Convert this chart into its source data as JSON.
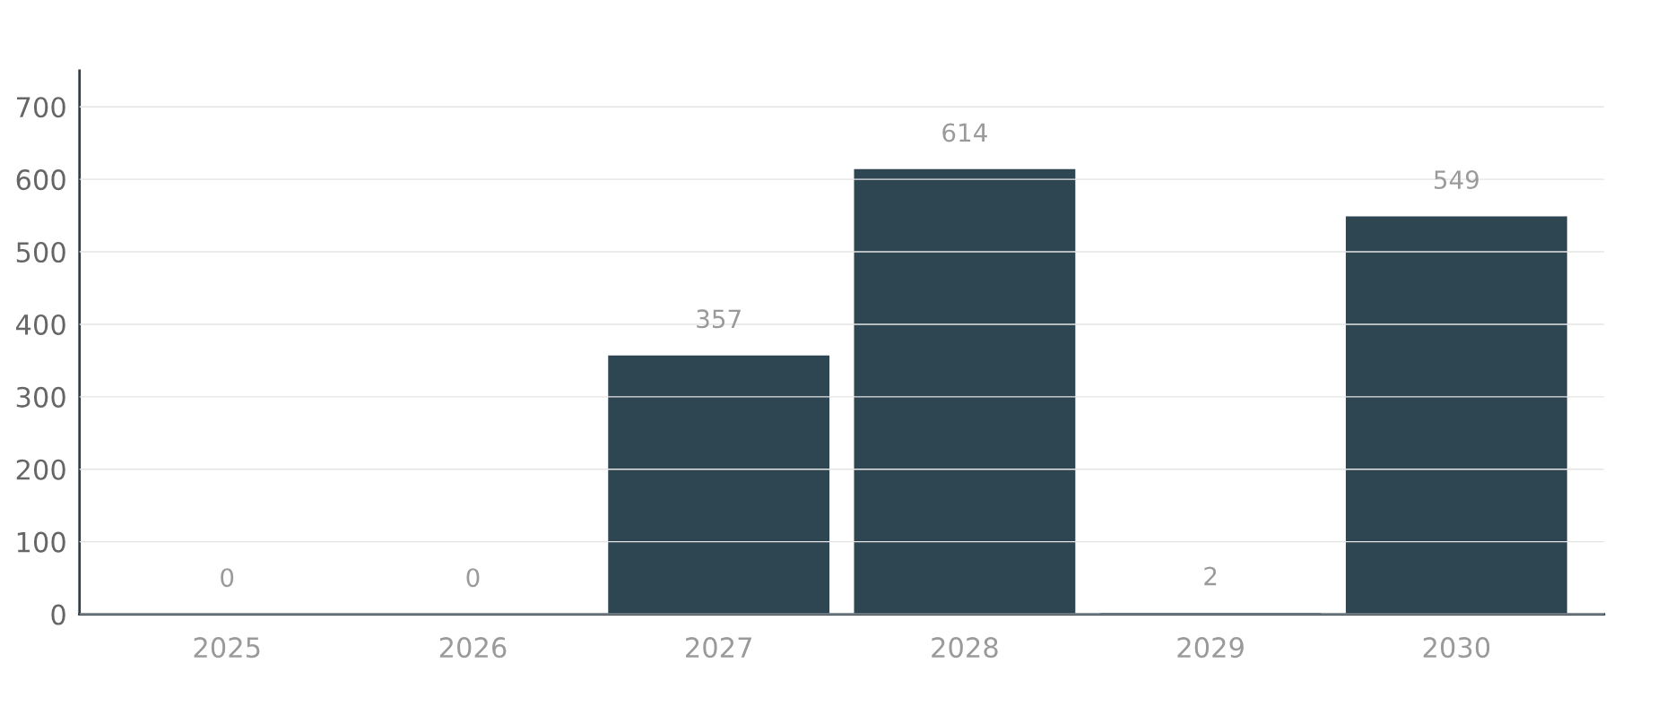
{
  "chart_data": {
    "type": "bar",
    "categories": [
      "2025",
      "2026",
      "2027",
      "2028",
      "2029",
      "2030"
    ],
    "values": [
      0,
      0,
      357,
      614,
      2,
      549
    ],
    "color": "#2e4552",
    "ylim": [
      0,
      750
    ],
    "yticks": [
      0,
      100,
      200,
      300,
      400,
      500,
      600,
      700
    ],
    "grid": "y",
    "data_labels": true
  }
}
